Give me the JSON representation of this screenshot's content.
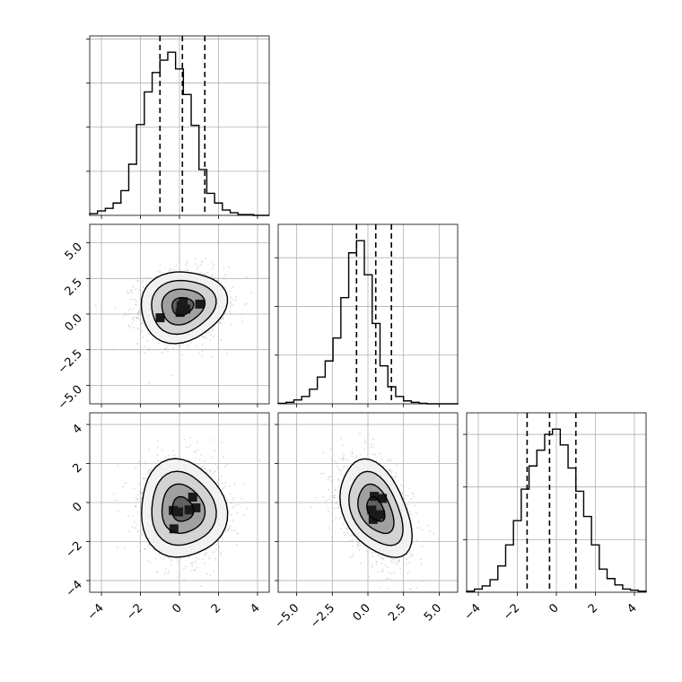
{
  "chart_data": {
    "type": "corner",
    "grid": true,
    "contour_levels": 4,
    "quantiles": [
      0.16,
      0.5,
      0.84
    ],
    "params": [
      {
        "range": [
          -4.6,
          4.6
        ],
        "ticks": [
          -4,
          -2,
          0,
          2,
          4
        ],
        "tick_labels": [
          "−4",
          "−2",
          "0",
          "2",
          "4"
        ],
        "quantile_values": [
          -1.0,
          0.15,
          1.3
        ],
        "mean": 0.15,
        "sd": 1.1,
        "hist": {
          "bin_edges_start": -4.6,
          "bin_width": 0.4,
          "counts": [
            2,
            5,
            8,
            14,
            28,
            58,
            103,
            140,
            162,
            176,
            185,
            166,
            137,
            102,
            52,
            25,
            14,
            6,
            3,
            1,
            1,
            0,
            0
          ]
        }
      },
      {
        "range": [
          -6.3,
          6.3
        ],
        "ticks": [
          -5.0,
          -2.5,
          0.0,
          2.5,
          5.0
        ],
        "tick_labels": [
          "−5.0",
          "−2.5",
          "0.0",
          "2.5",
          "5.0"
        ],
        "quantile_values": [
          -0.8,
          0.55,
          1.65
        ],
        "mean": 0.55,
        "sd": 1.25,
        "hist": {
          "bin_edges_start": -6.3,
          "bin_width": 0.55,
          "counts": [
            1,
            3,
            8,
            15,
            30,
            55,
            88,
            135,
            218,
            310,
            335,
            265,
            165,
            78,
            35,
            15,
            6,
            3,
            1,
            0,
            0,
            0,
            0
          ]
        }
      },
      {
        "range": [
          -4.6,
          4.6
        ],
        "ticks": [
          -4,
          -2,
          0,
          2,
          4
        ],
        "tick_labels": [
          "−4",
          "−2",
          "0",
          "2",
          "4"
        ],
        "quantile_values": [
          -1.5,
          -0.35,
          1.0
        ],
        "mean": -0.35,
        "sd": 1.25,
        "hist": {
          "bin_edges_start": -4.6,
          "bin_width": 0.4,
          "counts": [
            1,
            3,
            6,
            12,
            25,
            45,
            68,
            98,
            120,
            135,
            150,
            155,
            140,
            118,
            96,
            72,
            45,
            22,
            13,
            7,
            3,
            2,
            1
          ]
        }
      }
    ],
    "pairs": [
      {
        "row": 1,
        "col": 0,
        "correlation": 0.1
      },
      {
        "row": 2,
        "col": 0,
        "correlation": -0.05
      },
      {
        "row": 2,
        "col": 1,
        "correlation": -0.4
      }
    ]
  }
}
